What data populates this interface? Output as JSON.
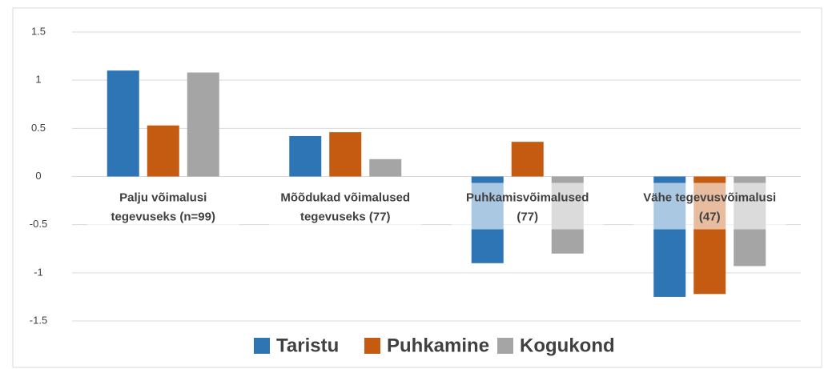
{
  "chart_data": {
    "type": "bar",
    "categories": [
      [
        "Palju võimalusi",
        "tegevuseks (n=99)"
      ],
      [
        "Mõõdukad võimalused",
        "tegevuseks (77)"
      ],
      [
        "Puhkamisvõimalused",
        "(77)"
      ],
      [
        "Vähe tegevusvõimalusi",
        "(47)"
      ]
    ],
    "series": [
      {
        "name": "Taristu",
        "color": "#2e75b6",
        "values": [
          1.1,
          0.42,
          -0.9,
          -1.25
        ]
      },
      {
        "name": "Puhkamine",
        "color": "#c55a11",
        "values": [
          0.53,
          0.46,
          0.36,
          -1.22
        ]
      },
      {
        "name": "Kogukond",
        "color": "#a5a5a5",
        "values": [
          1.08,
          0.18,
          -0.8,
          -0.93
        ]
      }
    ],
    "ylim": [
      -1.5,
      1.5
    ],
    "yticks": [
      -1.5,
      -1,
      -0.5,
      0,
      0.5,
      1,
      1.5
    ],
    "grid": true,
    "legend": "bottom"
  }
}
